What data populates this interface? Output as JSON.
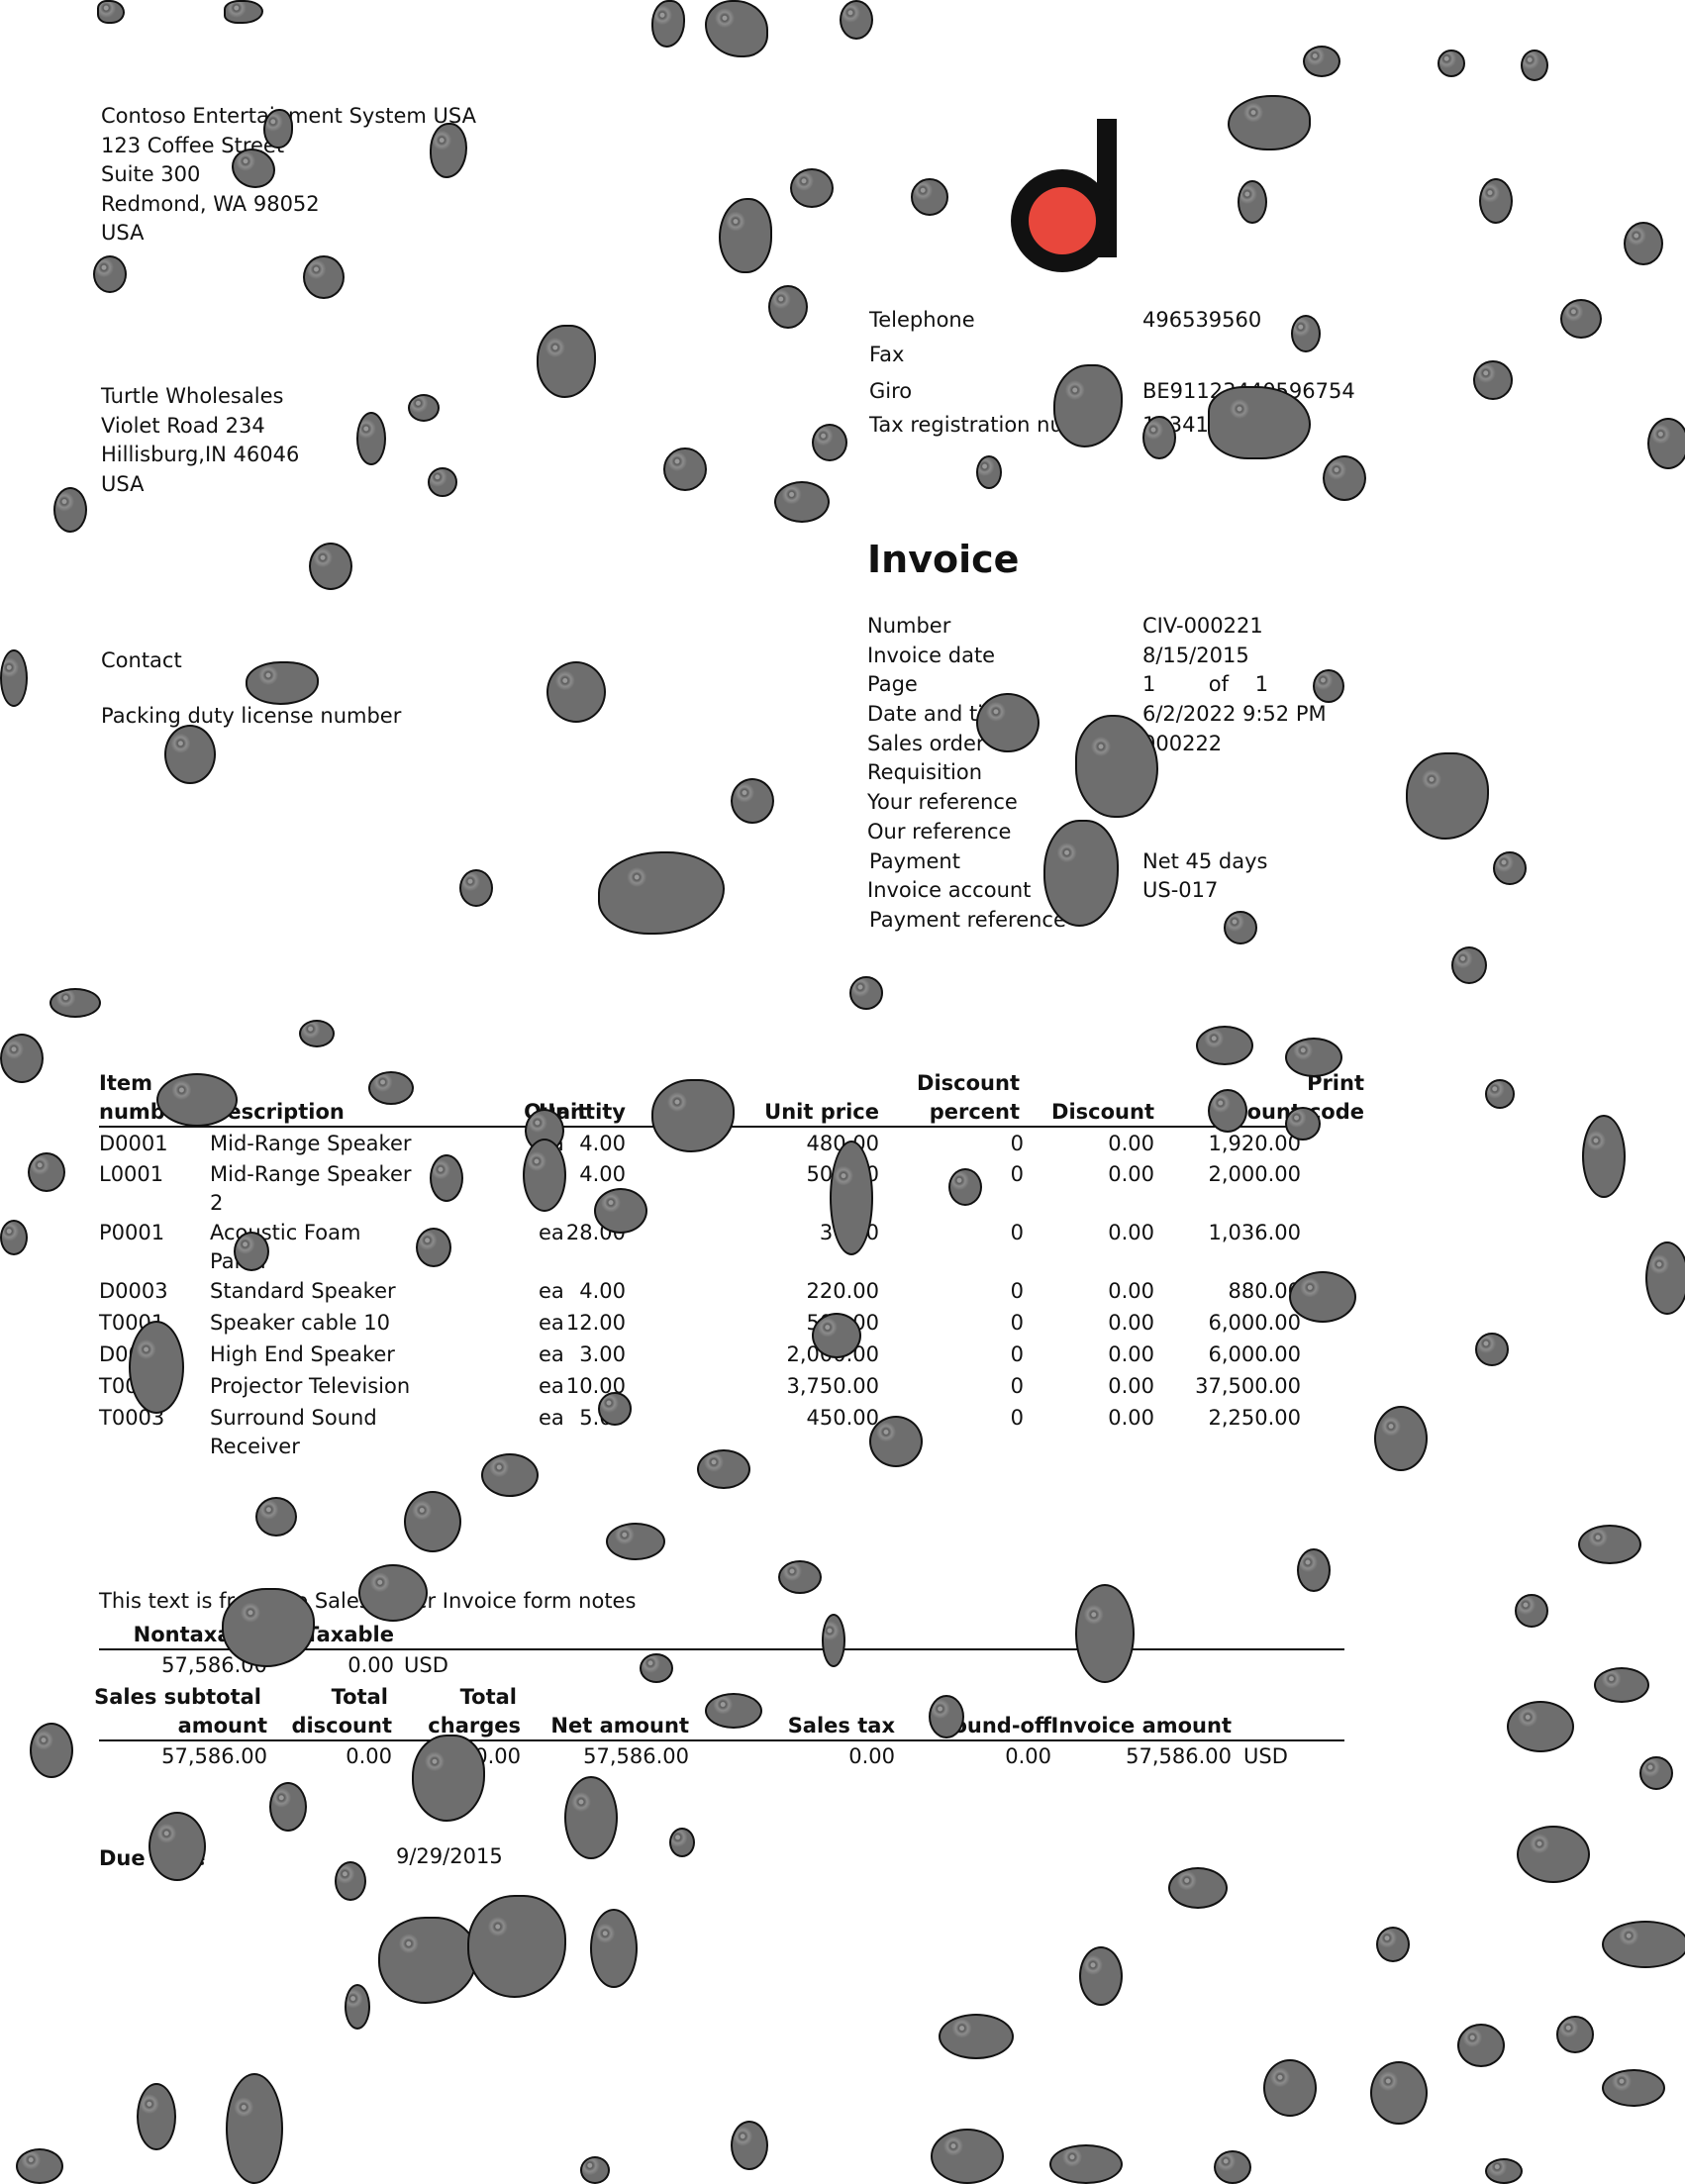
{
  "company": {
    "lines": [
      "Contoso Entertainment System USA",
      "123 Coffee Street",
      "Suite 300",
      "Redmond, WA 98052",
      "USA"
    ]
  },
  "customer": {
    "lines": [
      "Turtle Wholesales",
      "Violet Road 234",
      "Hillisburg,IN 46046",
      "USA"
    ]
  },
  "contact_label": "Contact",
  "packing_label": "Packing duty license number",
  "logo": {
    "icon": "logo-d-icon",
    "accent": "#e8473c",
    "ink": "#111111"
  },
  "company_contact": {
    "rows": [
      {
        "label": "Telephone",
        "value": "496539560"
      },
      {
        "label": "Fax",
        "value": ""
      },
      {
        "label": "Giro",
        "value": "BE91123440596754"
      },
      {
        "label": "Tax registration number",
        "value": "123412341234"
      }
    ]
  },
  "invoice": {
    "title": "Invoice",
    "fields": [
      {
        "label": "Number",
        "value": "CIV-000221"
      },
      {
        "label": "Invoice date",
        "value": "8/15/2015"
      },
      {
        "label": "Page",
        "value": "1        of    1"
      },
      {
        "label": "Date and time",
        "value": "6/2/2022 9:52 PM"
      },
      {
        "label": "Sales order",
        "value": "000222"
      },
      {
        "label": "Requisition",
        "value": ""
      },
      {
        "label": "Your reference",
        "value": ""
      },
      {
        "label": "Our reference",
        "value": ""
      },
      {
        "label": "Payment",
        "value": "Net 45 days"
      },
      {
        "label": "Invoice account",
        "value": "US-017"
      },
      {
        "label": "Payment reference",
        "value": ""
      }
    ]
  },
  "lines_table": {
    "headers": {
      "item_1": "Item",
      "item_2": "number",
      "description": "Description",
      "quantity": "Quantity",
      "unit": "Unit",
      "unit_price": "Unit price",
      "disc_pct_1": "Discount",
      "disc_pct_2": "percent",
      "discount": "Discount",
      "amount": "Amount",
      "print_1": "Print",
      "print_2": "code"
    },
    "rows": [
      {
        "item": "D0001",
        "desc": "Mid-Range Speaker",
        "desc2": "",
        "qty": "4.00",
        "unit": "ea",
        "price": "480.00",
        "pct": "0",
        "disc": "0.00",
        "amount": "1,920.00"
      },
      {
        "item": "L0001",
        "desc": "Mid-Range Speaker",
        "desc2": "2",
        "qty": "4.00",
        "unit": "ea",
        "price": "500.00",
        "pct": "0",
        "disc": "0.00",
        "amount": "2,000.00"
      },
      {
        "item": "P0001",
        "desc": "Acoustic Foam",
        "desc2": "Panel",
        "qty": "28.00",
        "unit": "ea",
        "price": "37.00",
        "pct": "0",
        "disc": "0.00",
        "amount": "1,036.00"
      },
      {
        "item": "D0003",
        "desc": "Standard Speaker",
        "desc2": "",
        "qty": "4.00",
        "unit": "ea",
        "price": "220.00",
        "pct": "0",
        "disc": "0.00",
        "amount": "880.00"
      },
      {
        "item": "T0001",
        "desc": "Speaker cable 10",
        "desc2": "",
        "qty": "12.00",
        "unit": "ea",
        "price": "500.00",
        "pct": "0",
        "disc": "0.00",
        "amount": "6,000.00"
      },
      {
        "item": "D0004",
        "desc": "High End Speaker",
        "desc2": "",
        "qty": "3.00",
        "unit": "ea",
        "price": "2,000.00",
        "pct": "0",
        "disc": "0.00",
        "amount": "6,000.00"
      },
      {
        "item": "T0002",
        "desc": "Projector Television",
        "desc2": "",
        "qty": "10.00",
        "unit": "ea",
        "price": "3,750.00",
        "pct": "0",
        "disc": "0.00",
        "amount": "37,500.00"
      },
      {
        "item": "T0003",
        "desc": "Surround Sound",
        "desc2": "Receiver",
        "qty": "5.00",
        "unit": "ea",
        "price": "450.00",
        "pct": "0",
        "disc": "0.00",
        "amount": "2,250.00"
      }
    ]
  },
  "notes": "This text is from the Sales Order Invoice form notes",
  "tax_summary": {
    "nontaxable_label": "Nontaxable",
    "taxable_label": "Taxable",
    "nontaxable_value": "57,586.00",
    "taxable_value": "0.00",
    "currency": "USD"
  },
  "totals": {
    "labels": {
      "subtotal_1": "Sales subtotal",
      "subtotal_2": "amount",
      "tdisc_1": "Total",
      "tdisc_2": "discount",
      "tchg_1": "Total",
      "tchg_2": "charges",
      "net": "Net amount",
      "tax": "Sales tax",
      "round": "Round-off",
      "invoice": "Invoice amount"
    },
    "values": {
      "subtotal": "57,586.00",
      "tdisc": "0.00",
      "tchg": "0.00",
      "net": "57,586.00",
      "tax": "0.00",
      "round": "0.00",
      "invoice": "57,586.00",
      "currency": "USD"
    }
  },
  "due": {
    "label": "Due date",
    "value": "9/29/2015"
  }
}
